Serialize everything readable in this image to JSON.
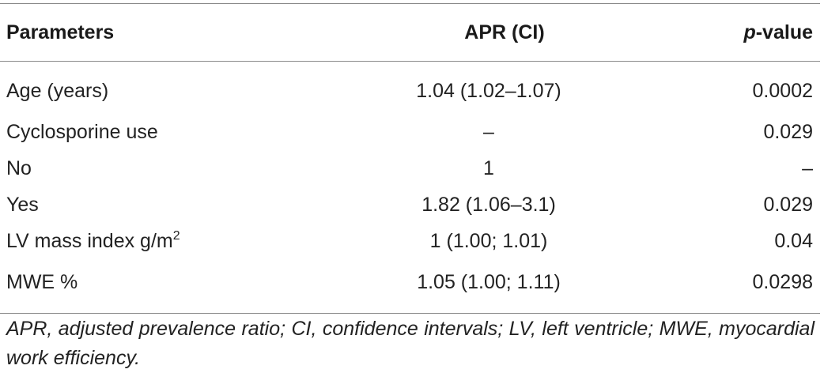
{
  "table": {
    "headers": {
      "parameters": "Parameters",
      "apr": "APR (CI)",
      "p_prefix": "p",
      "p_suffix": "-value"
    },
    "rows": [
      {
        "parameter": "Age (years)",
        "parameter_sup": "",
        "apr": "1.04 (1.02–1.07)",
        "p": "0.0002"
      },
      {
        "parameter": "Cyclosporine use",
        "parameter_sup": "",
        "apr": "–",
        "p": "0.029"
      },
      {
        "parameter": "No",
        "parameter_sup": "",
        "apr": "1",
        "p": "–"
      },
      {
        "parameter": "Yes",
        "parameter_sup": "",
        "apr": "1.82 (1.06–3.1)",
        "p": "0.029"
      },
      {
        "parameter": "LV mass index g/m",
        "parameter_sup": "2",
        "apr": "1 (1.00; 1.01)",
        "p": "0.04"
      },
      {
        "parameter": "MWE %",
        "parameter_sup": "",
        "apr": "1.05 (1.00; 1.11)",
        "p": "0.0298"
      }
    ]
  },
  "footnote": "APR, adjusted prevalence ratio; CI, confidence intervals; LV, left ventricle; MWE, myocardial work efficiency."
}
